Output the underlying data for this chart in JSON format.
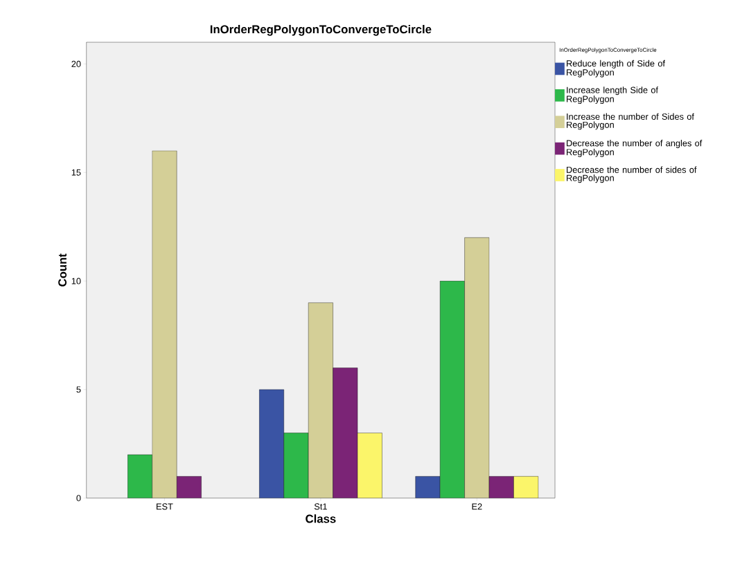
{
  "chart_data": {
    "type": "bar",
    "title": "InOrderRegPolygonToConvergeToCircle",
    "xlabel": "Class",
    "ylabel": "Count",
    "legend_title": "InOrderRegPolygonToConvergeToCircle",
    "categories": [
      "EST",
      "St1",
      "E2"
    ],
    "series": [
      {
        "name": "Reduce length of Side of RegPolygon",
        "color": "#3a54a4",
        "values": [
          null,
          5,
          1
        ]
      },
      {
        "name": "Increase length Side of RegPolygon",
        "color": "#2db84a",
        "values": [
          2,
          3,
          10
        ]
      },
      {
        "name": "Increase the number of Sides of RegPolygon",
        "color": "#d4cf97",
        "values": [
          16,
          9,
          12
        ]
      },
      {
        "name": "Decrease the number of angles of RegPolygon",
        "color": "#7b2476",
        "values": [
          1,
          6,
          1
        ]
      },
      {
        "name": "Decrease the number of sides of RegPolygon",
        "color": "#fbf56a",
        "values": [
          null,
          3,
          1
        ]
      }
    ],
    "ylim": [
      0,
      21
    ],
    "yticks": [
      0,
      5,
      10,
      15,
      20
    ],
    "legend": "right"
  }
}
